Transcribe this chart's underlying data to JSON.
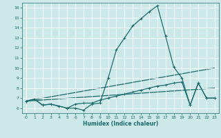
{
  "title": "",
  "xlabel": "Humidex (Indice chaleur)",
  "ylabel": "",
  "bg_color": "#cce8e8",
  "line_color": "#1a6b6b",
  "grid_color": "#ffffff",
  "xlim": [
    -0.5,
    23.5
  ],
  "ylim": [
    5.5,
    16.5
  ],
  "xticks": [
    0,
    1,
    2,
    3,
    4,
    5,
    6,
    7,
    8,
    9,
    10,
    11,
    12,
    13,
    14,
    15,
    16,
    17,
    18,
    19,
    20,
    21,
    22,
    23
  ],
  "yticks": [
    6,
    7,
    8,
    9,
    10,
    11,
    12,
    13,
    14,
    15,
    16
  ],
  "series_main_x": [
    0,
    1,
    2,
    3,
    4,
    5,
    6,
    7,
    8,
    9,
    10,
    11,
    12,
    13,
    14,
    15,
    16,
    17,
    18,
    19,
    20,
    21,
    22,
    23
  ],
  "series_main_y": [
    6.7,
    6.9,
    6.3,
    6.4,
    6.2,
    6.0,
    6.0,
    5.8,
    6.4,
    6.5,
    9.0,
    11.8,
    13.0,
    14.2,
    14.9,
    15.6,
    16.2,
    13.2,
    10.1,
    9.0,
    6.3,
    8.5,
    7.0,
    7.0
  ],
  "series_low_x": [
    0,
    1,
    2,
    3,
    4,
    5,
    6,
    7,
    8,
    9,
    10,
    11,
    12,
    13,
    14,
    15,
    16,
    17,
    18,
    19,
    20,
    21,
    22,
    23
  ],
  "series_low_y": [
    6.7,
    6.9,
    6.3,
    6.4,
    6.2,
    6.0,
    6.4,
    6.5,
    6.5,
    6.8,
    7.0,
    7.2,
    7.4,
    7.6,
    7.8,
    8.0,
    8.2,
    8.3,
    8.5,
    8.6,
    6.3,
    8.5,
    7.0,
    7.0
  ],
  "trend1_x": [
    0,
    23
  ],
  "trend1_y": [
    6.7,
    10.0
  ],
  "trend2_x": [
    0,
    23
  ],
  "trend2_y": [
    6.7,
    8.0
  ],
  "marker_size": 2.5,
  "line_width": 0.9,
  "tick_fontsize": 4.5,
  "xlabel_fontsize": 5.5
}
